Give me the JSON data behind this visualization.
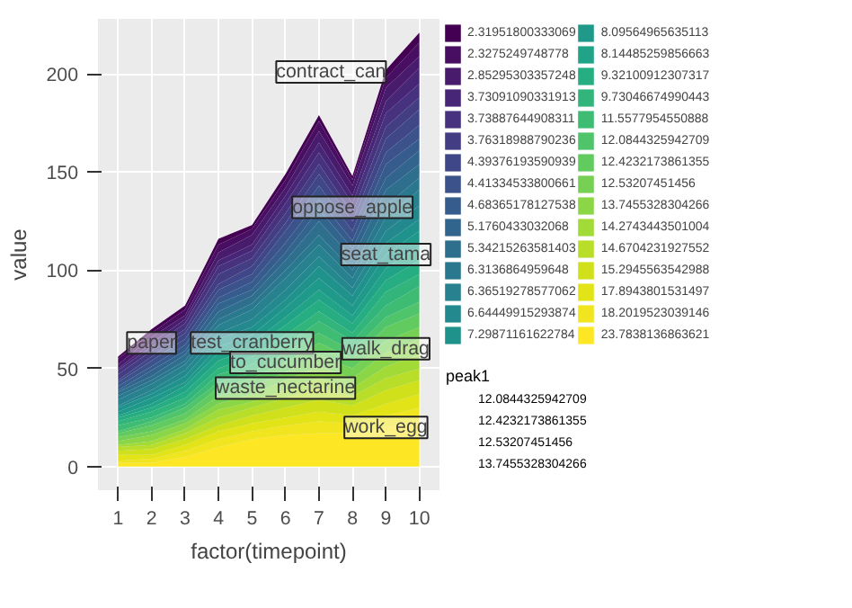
{
  "chart_data": {
    "type": "area",
    "stacked": true,
    "xlabel": "factor(timepoint)",
    "ylabel": "value",
    "categories": [
      "1",
      "2",
      "3",
      "4",
      "5",
      "6",
      "7",
      "8",
      "9",
      "10"
    ],
    "ylim": [
      -12,
      228
    ],
    "yticks": [
      0,
      50,
      100,
      150,
      200
    ],
    "grid": true,
    "legend": "right",
    "series": [
      {
        "name": "23.7838136863621",
        "color": "#fde725",
        "values": [
          2,
          2,
          5,
          10,
          14,
          16,
          17,
          17,
          20,
          23
        ]
      },
      {
        "name": "18.2019523039146",
        "color": "#f0e51f",
        "values": [
          1,
          2,
          3,
          4,
          4,
          5,
          6,
          5,
          6,
          7
        ]
      },
      {
        "name": "17.8943801531497",
        "color": "#e2e418",
        "values": [
          3,
          2,
          3,
          4,
          4,
          4,
          5,
          4,
          6,
          7
        ]
      },
      {
        "name": "15.2945563542988",
        "color": "#d0e11c",
        "values": [
          2,
          3,
          3,
          3,
          4,
          5,
          6,
          5,
          7,
          7
        ]
      },
      {
        "name": "14.6704231927552",
        "color": "#b8de29",
        "values": [
          2,
          2,
          3,
          4,
          4,
          5,
          6,
          5,
          6,
          6
        ]
      },
      {
        "name": "14.2743443501004",
        "color": "#a2da37",
        "values": [
          1,
          2,
          2,
          4,
          3,
          4,
          5,
          4,
          6,
          7
        ]
      },
      {
        "name": "13.7455328304266",
        "color": "#8bd646",
        "values": [
          2,
          3,
          3,
          3,
          4,
          5,
          6,
          5,
          7,
          8
        ]
      },
      {
        "name": "12.53207451456",
        "color": "#75d054",
        "values": [
          2,
          2,
          2,
          4,
          4,
          4,
          6,
          5,
          6,
          6
        ]
      },
      {
        "name": "12.4232173861355",
        "color": "#62cb5f",
        "values": [
          2,
          3,
          3,
          4,
          4,
          5,
          6,
          5,
          7,
          7
        ]
      },
      {
        "name": "12.0844325942709",
        "color": "#50c46a",
        "values": [
          1,
          2,
          3,
          3,
          3,
          5,
          5,
          4,
          5,
          6
        ]
      },
      {
        "name": "11.5577954550888",
        "color": "#3fbc73",
        "values": [
          3,
          2,
          2,
          4,
          4,
          4,
          6,
          5,
          6,
          8
        ]
      },
      {
        "name": "9.73046674990443",
        "color": "#31b57b",
        "values": [
          2,
          3,
          3,
          3,
          4,
          5,
          5,
          4,
          7,
          6
        ]
      },
      {
        "name": "9.32100912307317",
        "color": "#26ad81",
        "values": [
          2,
          2,
          3,
          4,
          4,
          5,
          6,
          5,
          6,
          7
        ]
      },
      {
        "name": "8.14485259856663",
        "color": "#20a386",
        "values": [
          1,
          2,
          3,
          4,
          3,
          4,
          5,
          4,
          6,
          7
        ]
      },
      {
        "name": "8.09564965635113",
        "color": "#1f9a8a",
        "values": [
          2,
          3,
          2,
          3,
          4,
          5,
          6,
          5,
          7,
          8
        ]
      },
      {
        "name": "7.29871161622784",
        "color": "#20928c",
        "values": [
          2,
          2,
          3,
          4,
          4,
          4,
          6,
          5,
          6,
          6
        ]
      },
      {
        "name": "6.64449915293874",
        "color": "#23898e",
        "values": [
          1,
          2,
          3,
          3,
          4,
          5,
          5,
          4,
          6,
          7
        ]
      },
      {
        "name": "6.36519278577062",
        "color": "#27818e",
        "values": [
          3,
          3,
          3,
          4,
          5,
          6,
          6,
          5,
          7,
          8
        ]
      },
      {
        "name": "6.3136864959648",
        "color": "#2a788e",
        "values": [
          2,
          2,
          2,
          3,
          3,
          4,
          5,
          4,
          6,
          6
        ]
      },
      {
        "name": "5.34215263581403",
        "color": "#2e6f8e",
        "values": [
          2,
          2,
          3,
          4,
          4,
          5,
          7,
          6,
          8,
          7
        ]
      },
      {
        "name": "5.1760433032068",
        "color": "#32658e",
        "values": [
          1,
          3,
          2,
          4,
          3,
          4,
          6,
          5,
          6,
          7
        ]
      },
      {
        "name": "4.68365178127538",
        "color": "#365c8d",
        "values": [
          2,
          2,
          3,
          3,
          4,
          5,
          5,
          4,
          7,
          6
        ]
      },
      {
        "name": "4.41334533800661",
        "color": "#3b528b",
        "values": [
          2,
          3,
          3,
          4,
          4,
          6,
          7,
          5,
          6,
          7
        ]
      },
      {
        "name": "4.39376193590939",
        "color": "#3f4788",
        "values": [
          1,
          2,
          3,
          3,
          4,
          4,
          6,
          5,
          7,
          8
        ]
      },
      {
        "name": "3.76318988790236",
        "color": "#433d84",
        "values": [
          3,
          3,
          2,
          5,
          4,
          5,
          5,
          4,
          6,
          6
        ]
      },
      {
        "name": "3.73887644908311",
        "color": "#46327e",
        "values": [
          2,
          2,
          3,
          4,
          4,
          5,
          6,
          5,
          7,
          7
        ]
      },
      {
        "name": "3.73091090331913",
        "color": "#482677",
        "values": [
          1,
          2,
          2,
          3,
          3,
          4,
          5,
          4,
          6,
          8
        ]
      },
      {
        "name": "2.85295303357248",
        "color": "#481b6d",
        "values": [
          2,
          3,
          2,
          4,
          5,
          4,
          6,
          5,
          7,
          6
        ]
      },
      {
        "name": "2.3275249748778",
        "color": "#470e61",
        "values": [
          3,
          2,
          3,
          4,
          3,
          4,
          5,
          3,
          5,
          7
        ]
      },
      {
        "name": "2.31951800333069",
        "color": "#440154",
        "values": [
          1,
          2,
          2,
          3,
          2,
          3,
          3,
          2,
          4,
          5
        ]
      }
    ],
    "annotations": [
      {
        "text": "contract_can",
        "x": "9",
        "y": 201
      },
      {
        "text": "oppose_apple",
        "x": "8",
        "y": 132
      },
      {
        "text": "seat_tama",
        "x": "9",
        "y": 108
      },
      {
        "text": "paper",
        "x": "2",
        "y": 63
      },
      {
        "text": "test_cranberry",
        "x": "5",
        "y": 63
      },
      {
        "text": "walk_drag",
        "x": "9",
        "y": 60
      },
      {
        "text": "to_cucumber",
        "x": "6",
        "y": 53
      },
      {
        "text": "waste_nectarine",
        "x": "6",
        "y": 40
      },
      {
        "text": "work_egg",
        "x": "9",
        "y": 20
      },
      "peak1",
      "12.0844325942709",
      "12.4232173861355",
      "12.53207451456",
      "13.7455328304266"
    ]
  }
}
